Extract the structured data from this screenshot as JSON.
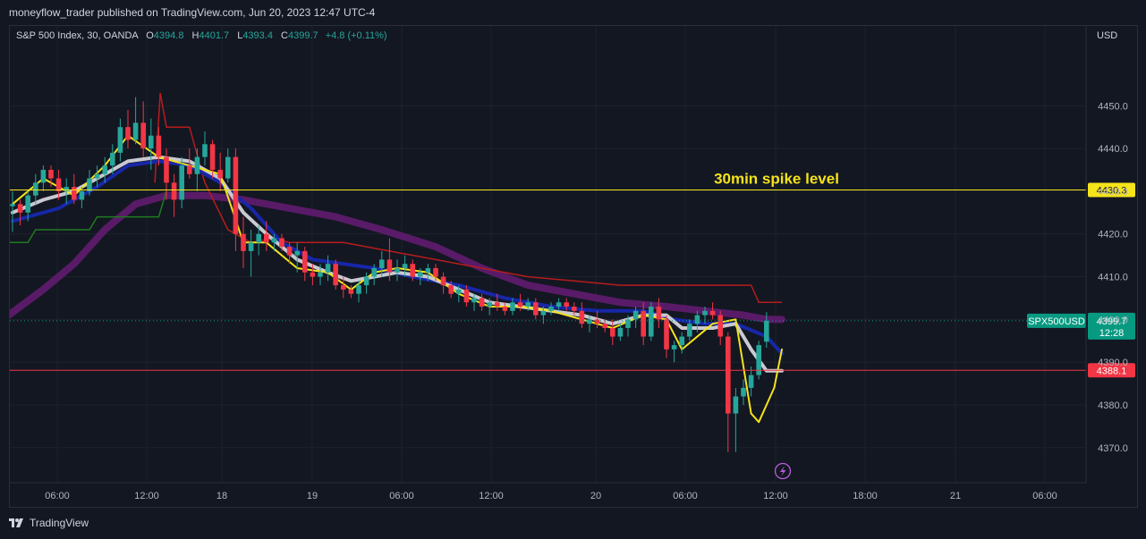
{
  "header": {
    "publisher_text": "moneyflow_trader published on TradingView.com, Jun 20, 2023 12:47 UTC-4"
  },
  "legend": {
    "symbol_text": "S&P 500 Index, 30, OANDA",
    "open_label": "O",
    "open_value": "4394.8",
    "high_label": "H",
    "high_value": "4401.7",
    "low_label": "L",
    "low_value": "4393.4",
    "close_label": "C",
    "close_value": "4399.7",
    "change": "+4.8 (+0.11%)"
  },
  "currency": "USD",
  "footer": {
    "brand": "TradingView"
  },
  "chart_data": {
    "type": "candlestick",
    "ylim": [
      4366,
      4458
    ],
    "y_ticks": [
      "4450.0",
      "4440.0",
      "4430.0",
      "4420.0",
      "4410.0",
      "4400.0",
      "4390.0",
      "4380.0",
      "4370.0"
    ],
    "x_ticks": [
      "06:00",
      "12:00",
      "18",
      "19",
      "06:00",
      "12:00",
      "20",
      "06:00",
      "12:00",
      "18:00",
      "21",
      "06:00"
    ],
    "annotation": "30min spike level",
    "levels": [
      {
        "value": 4430.3,
        "label": "4430.3",
        "color": "#f5e31b"
      },
      {
        "value": 4388.1,
        "label": "4388.1",
        "color": "#f23645"
      }
    ],
    "last_price": {
      "symbol": "SPX500USD",
      "value": 4399.7,
      "label": "4399.7",
      "countdown": "12:28",
      "color": "#089981"
    },
    "colors": {
      "up": "#26a69a",
      "down": "#f23645",
      "grid": "#1e222d"
    },
    "candles": [
      [
        4426.5,
        4430,
        4420.5,
        4427
      ],
      [
        4427,
        4428,
        4422,
        4425
      ],
      [
        4425,
        4430,
        4423,
        4429
      ],
      [
        4429,
        4434,
        4427,
        4432
      ],
      [
        4432,
        4436,
        4430,
        4435
      ],
      [
        4435,
        4436,
        4431,
        4433
      ],
      [
        4433,
        4435,
        4428,
        4430
      ],
      [
        4430,
        4433,
        4427,
        4431
      ],
      [
        4431,
        4434,
        4427,
        4428
      ],
      [
        4428,
        4431,
        4426,
        4430
      ],
      [
        4430,
        4435,
        4429,
        4433
      ],
      [
        4433,
        4436,
        4431,
        4434
      ],
      [
        4434,
        4438,
        4432,
        4436
      ],
      [
        4436,
        4441,
        4434,
        4439
      ],
      [
        4439,
        4447,
        4437,
        4445
      ],
      [
        4445,
        4449,
        4440,
        4442
      ],
      [
        4442,
        4452,
        4441,
        4446
      ],
      [
        4446,
        4451,
        4438,
        4440
      ],
      [
        4440,
        4447,
        4435,
        4443
      ],
      [
        4443,
        4445,
        4436,
        4438
      ],
      [
        4438,
        4440,
        4428,
        4432
      ],
      [
        4432,
        4434,
        4424,
        4428
      ],
      [
        4428,
        4438,
        4426,
        4436
      ],
      [
        4436,
        4440,
        4433,
        4434
      ],
      [
        4434,
        4440,
        4430,
        4438
      ],
      [
        4438,
        4444,
        4436,
        4441
      ],
      [
        4441,
        4442,
        4433,
        4435
      ],
      [
        4435,
        4439,
        4430,
        4433
      ],
      [
        4433,
        4440,
        4432,
        4438
      ],
      [
        4438,
        4440,
        4416,
        4420
      ],
      [
        4420,
        4424,
        4412,
        4416
      ],
      [
        4416,
        4421,
        4410,
        4418
      ],
      [
        4418,
        4422,
        4415,
        4420
      ],
      [
        4420,
        4423,
        4416,
        4418
      ],
      [
        4418,
        4420,
        4416,
        4419
      ],
      [
        4419,
        4420,
        4416,
        4417
      ],
      [
        4417,
        4418,
        4413,
        4415
      ],
      [
        4415,
        4418,
        4411,
        4416
      ],
      [
        4416,
        4417,
        4409,
        4411
      ],
      [
        4411,
        4413,
        4408,
        4410
      ],
      [
        4410,
        4413,
        4408,
        4411
      ],
      [
        4411,
        4415,
        4409,
        4413
      ],
      [
        4413,
        4414,
        4407,
        4408
      ],
      [
        4408,
        4410,
        4405,
        4407
      ],
      [
        4407,
        4408,
        4405,
        4406
      ],
      [
        4406,
        4409,
        4404,
        4408
      ],
      [
        4408,
        4411,
        4406,
        4410
      ],
      [
        4410,
        4413,
        4408,
        4412
      ],
      [
        4412,
        4416,
        4410,
        4414
      ],
      [
        4414,
        4419,
        4409,
        4411
      ],
      [
        4411,
        4414,
        4409,
        4412
      ],
      [
        4412,
        4415,
        4410,
        4413
      ],
      [
        4413,
        4414,
        4409,
        4410
      ],
      [
        4410,
        4412,
        4408,
        4411
      ],
      [
        4411,
        4413,
        4409,
        4412
      ],
      [
        4412,
        4413,
        4409,
        4410
      ],
      [
        4410,
        4411,
        4406,
        4408
      ],
      [
        4408,
        4409,
        4405,
        4406
      ],
      [
        4406,
        4408,
        4404,
        4407
      ],
      [
        4407,
        4408,
        4403,
        4404
      ],
      [
        4404,
        4406,
        4402,
        4405
      ],
      [
        4405,
        4406,
        4402,
        4403
      ],
      [
        4403,
        4405,
        4401,
        4404
      ],
      [
        4404,
        4406,
        4402,
        4403
      ],
      [
        4403,
        4404,
        4401,
        4402
      ],
      [
        4402,
        4405,
        4401,
        4404
      ],
      [
        4404,
        4406,
        4402,
        4403
      ],
      [
        4403,
        4405,
        4402,
        4404
      ],
      [
        4404,
        4405,
        4400,
        4401
      ],
      [
        4401,
        4403,
        4399,
        4402
      ],
      [
        4402,
        4404,
        4401,
        4403
      ],
      [
        4403,
        4405,
        4402,
        4404
      ],
      [
        4404,
        4405,
        4402,
        4403
      ],
      [
        4403,
        4404,
        4401,
        4402
      ],
      [
        4402,
        4404,
        4398,
        4399
      ],
      [
        4399,
        4401,
        4397,
        4400
      ],
      [
        4400,
        4402,
        4398,
        4399
      ],
      [
        4399,
        4400,
        4397,
        4398
      ],
      [
        4398,
        4400,
        4394,
        4396
      ],
      [
        4396,
        4399,
        4395,
        4398
      ],
      [
        4398,
        4401,
        4396,
        4400
      ],
      [
        4400,
        4403,
        4398,
        4402
      ],
      [
        4402,
        4404,
        4394,
        4396
      ],
      [
        4396,
        4404,
        4395,
        4403
      ],
      [
        4403,
        4405,
        4398,
        4400
      ],
      [
        4400,
        4401,
        4391,
        4393
      ],
      [
        4393,
        4395,
        4390,
        4394
      ],
      [
        4394,
        4397,
        4392,
        4396
      ],
      [
        4396,
        4400,
        4395,
        4399
      ],
      [
        4399,
        4402,
        4397,
        4401
      ],
      [
        4401,
        4403,
        4399,
        4402
      ],
      [
        4402,
        4404,
        4400,
        4401
      ],
      [
        4401,
        4402,
        4394,
        4396
      ],
      [
        4396,
        4397,
        4369,
        4378
      ],
      [
        4378,
        4384,
        4369,
        4382
      ],
      [
        4382,
        4386,
        4380,
        4384
      ],
      [
        4384,
        4389,
        4382,
        4387
      ],
      [
        4387,
        4395,
        4386,
        4394
      ],
      [
        4394.8,
        4401.7,
        4393.4,
        4399.7
      ]
    ],
    "ma_yellow": [
      [
        0,
        4427
      ],
      [
        4,
        4433
      ],
      [
        8,
        4429
      ],
      [
        12,
        4436
      ],
      [
        15,
        4443
      ],
      [
        19,
        4438
      ],
      [
        23,
        4436
      ],
      [
        27,
        4434
      ],
      [
        30,
        4418
      ],
      [
        33,
        4418
      ],
      [
        37,
        4412
      ],
      [
        41,
        4411
      ],
      [
        44,
        4407
      ],
      [
        47,
        4411
      ],
      [
        50,
        4412
      ],
      [
        54,
        4411
      ],
      [
        58,
        4406
      ],
      [
        62,
        4403
      ],
      [
        66,
        4403
      ],
      [
        70,
        4402
      ],
      [
        74,
        4400
      ],
      [
        78,
        4398
      ],
      [
        82,
        4401
      ],
      [
        85,
        4400
      ],
      [
        87,
        4393
      ],
      [
        91,
        4399
      ],
      [
        94,
        4400
      ],
      [
        96,
        4378
      ],
      [
        97,
        4376
      ],
      [
        99,
        4384
      ],
      [
        100,
        4393
      ]
    ],
    "ma_gray": [
      [
        0,
        4425
      ],
      [
        4,
        4428
      ],
      [
        8,
        4430
      ],
      [
        12,
        4434
      ],
      [
        15,
        4437
      ],
      [
        19,
        4438
      ],
      [
        23,
        4437
      ],
      [
        27,
        4433
      ],
      [
        30,
        4425
      ],
      [
        33,
        4420
      ],
      [
        37,
        4414
      ],
      [
        41,
        4411
      ],
      [
        44,
        4409
      ],
      [
        47,
        4410
      ],
      [
        50,
        4411
      ],
      [
        54,
        4410
      ],
      [
        58,
        4407
      ],
      [
        62,
        4404
      ],
      [
        66,
        4403
      ],
      [
        70,
        4402
      ],
      [
        74,
        4401
      ],
      [
        78,
        4399
      ],
      [
        82,
        4401
      ],
      [
        85,
        4401
      ],
      [
        87,
        4398
      ],
      [
        91,
        4398
      ],
      [
        94,
        4399
      ],
      [
        96,
        4393
      ],
      [
        98,
        4388
      ],
      [
        100,
        4388
      ]
    ],
    "ma_blue": [
      [
        0,
        4423
      ],
      [
        6,
        4426
      ],
      [
        11,
        4431
      ],
      [
        15,
        4436
      ],
      [
        19,
        4437
      ],
      [
        23,
        4436
      ],
      [
        27,
        4432
      ],
      [
        31,
        4426
      ],
      [
        35,
        4418
      ],
      [
        39,
        4414
      ],
      [
        43,
        4413
      ],
      [
        47,
        4412
      ],
      [
        52,
        4410
      ],
      [
        58,
        4408
      ],
      [
        64,
        4405
      ],
      [
        70,
        4403
      ],
      [
        76,
        4402
      ],
      [
        82,
        4402
      ],
      [
        86,
        4400
      ],
      [
        90,
        4399
      ],
      [
        94,
        4399
      ],
      [
        98,
        4396
      ],
      [
        100,
        4392
      ]
    ],
    "ma_purple": [
      [
        -0.5,
        4401
      ],
      [
        4,
        4407
      ],
      [
        8,
        4413
      ],
      [
        12,
        4421
      ],
      [
        16,
        4427
      ],
      [
        20,
        4429
      ],
      [
        25,
        4429
      ],
      [
        30,
        4428
      ],
      [
        36,
        4426
      ],
      [
        42,
        4424
      ],
      [
        48,
        4421
      ],
      [
        55,
        4417
      ],
      [
        61,
        4412
      ],
      [
        67,
        4408
      ],
      [
        73,
        4406
      ],
      [
        79,
        4404
      ],
      [
        85,
        4403
      ],
      [
        90,
        4402
      ],
      [
        95,
        4401
      ],
      [
        98,
        4400
      ],
      [
        100,
        4400
      ]
    ],
    "line_red": [
      [
        18.5,
        4432
      ],
      [
        19.2,
        4453
      ],
      [
        20,
        4445
      ],
      [
        23,
        4445
      ],
      [
        25,
        4432
      ],
      [
        28,
        4421
      ],
      [
        31,
        4418
      ],
      [
        34,
        4419
      ],
      [
        36,
        4418
      ],
      [
        43,
        4418
      ],
      [
        49,
        4416
      ],
      [
        55,
        4414
      ],
      [
        61,
        4412
      ],
      [
        67,
        4410
      ],
      [
        73,
        4409
      ],
      [
        79,
        4408
      ],
      [
        85,
        4408
      ],
      [
        96,
        4408
      ],
      [
        97,
        4404
      ],
      [
        100,
        4404
      ]
    ],
    "line_green": [
      [
        -0.5,
        4418
      ],
      [
        2,
        4418
      ],
      [
        3,
        4421
      ],
      [
        10,
        4421
      ],
      [
        11,
        4424
      ],
      [
        19,
        4424
      ],
      [
        20,
        4430
      ]
    ]
  }
}
